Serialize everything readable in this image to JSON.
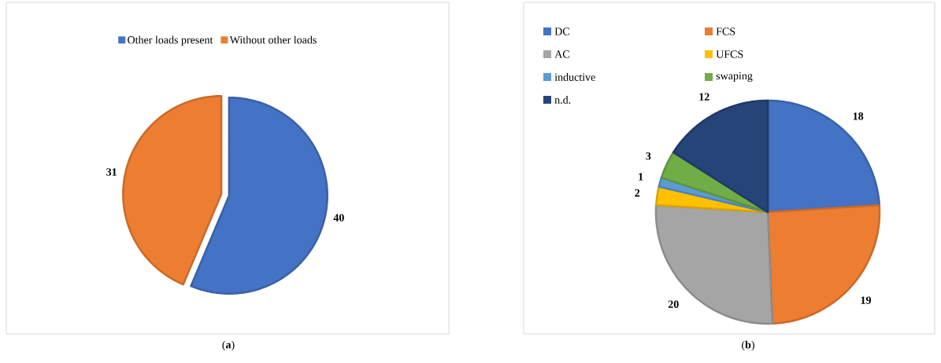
{
  "chart_data": [
    {
      "type": "pie",
      "categories": [
        "Other loads present",
        "Without other loads"
      ],
      "values": [
        40,
        31
      ],
      "colors": [
        "#4472c4",
        "#ed7d31"
      ],
      "data_labels": true,
      "legend": "top",
      "annotations": [
        "(**a**)"
      ]
    },
    {
      "type": "pie",
      "categories": [
        "DC",
        "FCS",
        "AC",
        "UFCS",
        "inductive",
        "swaping",
        "n.d."
      ],
      "values": [
        18,
        19,
        20,
        2,
        1,
        3,
        12
      ],
      "colors": [
        "#4472c4",
        "#ed7d31",
        "#a5a5a5",
        "#ffc000",
        "#5b9bd5",
        "#70ad47",
        "#264478"
      ],
      "data_labels": true,
      "legend": "top left",
      "annotations": [
        "(**b**)"
      ]
    }
  ]
}
